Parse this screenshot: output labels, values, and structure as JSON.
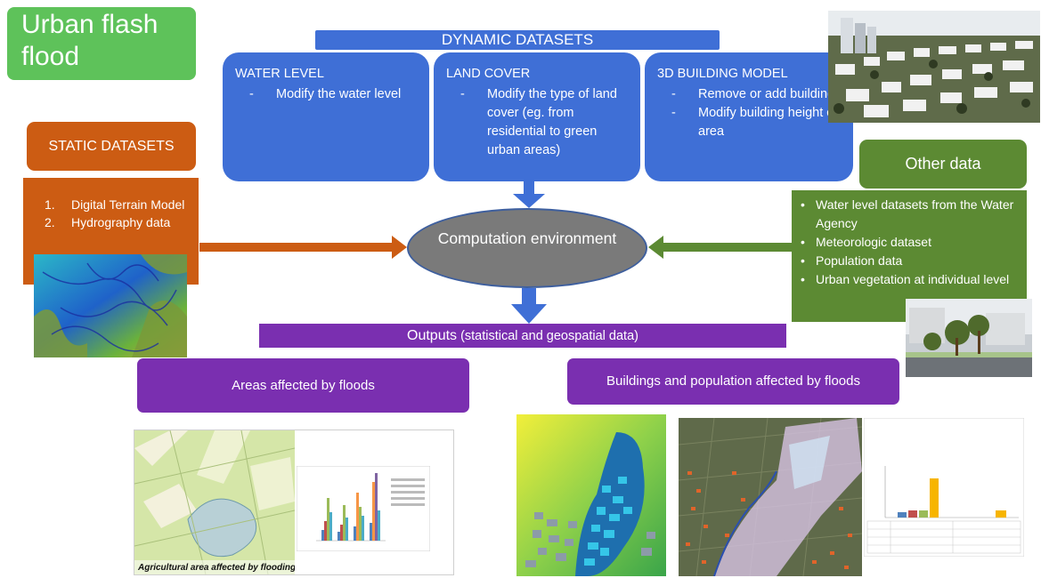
{
  "title": "Urban flash flood",
  "dynamic": {
    "header": "DYNAMIC DATASETS",
    "cards": [
      {
        "title": "WATER LEVEL",
        "items": [
          "Modify the water level"
        ]
      },
      {
        "title": "LAND COVER",
        "items": [
          "Modify the type of land cover (eg. from residential to green urban areas)"
        ]
      },
      {
        "title": "3D BUILDING MODEL",
        "items": [
          "Remove or add buildings",
          "Modify building height or area"
        ]
      }
    ]
  },
  "static": {
    "header": "STATIC DATASETS",
    "items": [
      {
        "num": "1.",
        "text": "Digital Terrain Model"
      },
      {
        "num": "2.",
        "text": "Hydrography data"
      }
    ]
  },
  "other": {
    "header": "Other data",
    "items": [
      "Water level datasets from the Water Agency",
      "Meteorologic dataset",
      "Population data",
      "Urban vegetation at individual level"
    ]
  },
  "computation": "Computation environment",
  "outputs": {
    "label": "Outputs",
    "sublabel": " (statistical and geospatial data)",
    "areas": "Areas affected by floods",
    "buildings": "Buildings and population affected by floods"
  },
  "map_caption": "Agricultural area affected by flooding",
  "colors": {
    "green": "#5ec25a",
    "blue": "#3f6fd6",
    "orange": "#cc5c13",
    "olive": "#5c8a33",
    "purple": "#7a2fb0",
    "gray": "#7a7a7a"
  }
}
